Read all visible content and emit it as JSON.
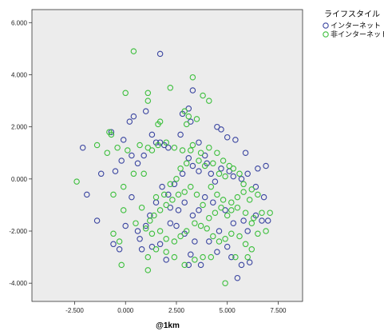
{
  "chart_data": {
    "type": "scatter",
    "title": "",
    "xlabel": "@1km",
    "ylabel": "",
    "xlim": [
      -4600,
      8700
    ],
    "ylim": [
      -4700,
      6500
    ],
    "xticks": [
      "-2.500",
      "0.000",
      "2.500",
      "5.000",
      "7.500"
    ],
    "xtick_values": [
      -2500,
      0,
      2500,
      5000,
      7500
    ],
    "yticks": [
      "6.000",
      "4.000",
      "2.000",
      "0.000",
      "-2.000",
      "-4.000"
    ],
    "ytick_values": [
      6000,
      4000,
      2000,
      0,
      -2000,
      -4000
    ],
    "grid": false,
    "background": "#ececec",
    "legend": {
      "title": "ライフスタイル",
      "placement": "top-right, outside plot"
    },
    "series": [
      {
        "name": "インターネット",
        "color": "#3a45a0",
        "marker": "open-circle",
        "points": [
          [
            1700,
            4800
          ],
          [
            3300,
            3400
          ],
          [
            3100,
            2700
          ],
          [
            2800,
            2500
          ],
          [
            1000,
            2600
          ],
          [
            400,
            2400
          ],
          [
            200,
            2200
          ],
          [
            -2100,
            1200
          ],
          [
            -1200,
            200
          ],
          [
            -1900,
            -600
          ],
          [
            -1400,
            -1600
          ],
          [
            -100,
            1500
          ],
          [
            300,
            900
          ],
          [
            600,
            600
          ],
          [
            900,
            900
          ],
          [
            1500,
            1400
          ],
          [
            1700,
            1400
          ],
          [
            1900,
            1300
          ],
          [
            2100,
            1200
          ],
          [
            3200,
            2200
          ],
          [
            3600,
            1400
          ],
          [
            4500,
            2000
          ],
          [
            4700,
            1900
          ],
          [
            5000,
            1600
          ],
          [
            5400,
            1500
          ],
          [
            3100,
            800
          ],
          [
            3300,
            500
          ],
          [
            3600,
            300
          ],
          [
            4000,
            600
          ],
          [
            4200,
            200
          ],
          [
            4400,
            -100
          ],
          [
            4700,
            400
          ],
          [
            5100,
            300
          ],
          [
            5300,
            100
          ],
          [
            5700,
            0
          ],
          [
            6000,
            200
          ],
          [
            6500,
            400
          ],
          [
            6900,
            500
          ],
          [
            6400,
            -300
          ],
          [
            6800,
            -700
          ],
          [
            2800,
            200
          ],
          [
            2400,
            -200
          ],
          [
            2100,
            -600
          ],
          [
            1800,
            -300
          ],
          [
            1500,
            -900
          ],
          [
            1200,
            -1400
          ],
          [
            1000,
            -1800
          ],
          [
            600,
            -2000
          ],
          [
            0,
            -1800
          ],
          [
            -600,
            -2500
          ],
          [
            800,
            -2700
          ],
          [
            1300,
            -2600
          ],
          [
            1700,
            -2500
          ],
          [
            2200,
            -1700
          ],
          [
            2500,
            -1800
          ],
          [
            2900,
            -2100
          ],
          [
            3400,
            -2400
          ],
          [
            3200,
            -2900
          ],
          [
            3100,
            -3300
          ],
          [
            3700,
            -3300
          ],
          [
            4100,
            -2400
          ],
          [
            4600,
            -2000
          ],
          [
            5000,
            -2600
          ],
          [
            5200,
            -3000
          ],
          [
            5500,
            -3800
          ],
          [
            5700,
            -3300
          ],
          [
            6100,
            -3200
          ],
          [
            6000,
            -2000
          ],
          [
            6400,
            -1400
          ],
          [
            6700,
            -1600
          ],
          [
            7000,
            -1600
          ],
          [
            4300,
            -900
          ],
          [
            3900,
            -700
          ],
          [
            3600,
            -1200
          ],
          [
            3300,
            -1400
          ],
          [
            2900,
            -900
          ],
          [
            2600,
            -1200
          ],
          [
            2200,
            -1100
          ],
          [
            -500,
            300
          ],
          [
            -200,
            700
          ],
          [
            -700,
            1800
          ],
          [
            1300,
            1700
          ],
          [
            2700,
            1700
          ],
          [
            3900,
            900
          ],
          [
            5900,
            1000
          ],
          [
            4900,
            -1200
          ],
          [
            5300,
            -1700
          ],
          [
            5800,
            -1600
          ],
          [
            4500,
            -2800
          ],
          [
            2000,
            -3100
          ],
          [
            300,
            -700
          ],
          [
            700,
            -2300
          ],
          [
            -300,
            -2700
          ]
        ]
      },
      {
        "name": "非インターネット",
        "color": "#3cbf3c",
        "marker": "open-circle",
        "points": [
          [
            400,
            4900
          ],
          [
            3300,
            3900
          ],
          [
            2200,
            3500
          ],
          [
            1100,
            3300
          ],
          [
            1100,
            3000
          ],
          [
            0,
            3300
          ],
          [
            3800,
            3200
          ],
          [
            4100,
            3000
          ],
          [
            2900,
            2600
          ],
          [
            3100,
            2400
          ],
          [
            3500,
            2300
          ],
          [
            3000,
            2100
          ],
          [
            1700,
            2200
          ],
          [
            1600,
            2100
          ],
          [
            -800,
            1800
          ],
          [
            -700,
            1700
          ],
          [
            -900,
            1000
          ],
          [
            -1400,
            1300
          ],
          [
            -400,
            1200
          ],
          [
            100,
            1100
          ],
          [
            700,
            1300
          ],
          [
            1100,
            1200
          ],
          [
            1300,
            1100
          ],
          [
            1600,
            1300
          ],
          [
            2000,
            1400
          ],
          [
            2400,
            1200
          ],
          [
            2800,
            1100
          ],
          [
            3300,
            1300
          ],
          [
            3200,
            1100
          ],
          [
            3700,
            1000
          ],
          [
            4100,
            1200
          ],
          [
            4500,
            1000
          ],
          [
            4800,
            700
          ],
          [
            5100,
            500
          ],
          [
            4300,
            600
          ],
          [
            4600,
            200
          ],
          [
            4900,
            100
          ],
          [
            5300,
            400
          ],
          [
            5600,
            200
          ],
          [
            5800,
            -200
          ],
          [
            6200,
            -400
          ],
          [
            6500,
            -600
          ],
          [
            6700,
            -1300
          ],
          [
            7100,
            -1300
          ],
          [
            6900,
            -2000
          ],
          [
            6500,
            -2100
          ],
          [
            6200,
            -1700
          ],
          [
            5900,
            -1300
          ],
          [
            5500,
            -1100
          ],
          [
            5200,
            -1200
          ],
          [
            5000,
            -1400
          ],
          [
            4700,
            -1100
          ],
          [
            4400,
            -1300
          ],
          [
            4100,
            -1500
          ],
          [
            3800,
            -1000
          ],
          [
            3500,
            -600
          ],
          [
            3200,
            -300
          ],
          [
            2900,
            -500
          ],
          [
            2600,
            -600
          ],
          [
            2300,
            -800
          ],
          [
            2000,
            -1000
          ],
          [
            1700,
            -1200
          ],
          [
            1400,
            -1400
          ],
          [
            1200,
            -1600
          ],
          [
            1000,
            -1900
          ],
          [
            1300,
            -2100
          ],
          [
            1700,
            -2000
          ],
          [
            2000,
            -2300
          ],
          [
            2400,
            -2400
          ],
          [
            2700,
            -2200
          ],
          [
            3000,
            -2000
          ],
          [
            3400,
            -1700
          ],
          [
            3700,
            -1800
          ],
          [
            4000,
            -1900
          ],
          [
            4300,
            -2200
          ],
          [
            4600,
            -2400
          ],
          [
            4900,
            -2300
          ],
          [
            5200,
            -2100
          ],
          [
            5600,
            -2200
          ],
          [
            5900,
            -2500
          ],
          [
            6200,
            -2700
          ],
          [
            6000,
            -3000
          ],
          [
            4900,
            -4000
          ],
          [
            4200,
            -3000
          ],
          [
            3800,
            -3000
          ],
          [
            3400,
            -3100
          ],
          [
            2900,
            -3300
          ],
          [
            2400,
            -3000
          ],
          [
            2000,
            -2800
          ],
          [
            1500,
            -2700
          ],
          [
            1100,
            -3000
          ],
          [
            1100,
            -3500
          ],
          [
            -200,
            -3300
          ],
          [
            -600,
            -2100
          ],
          [
            -300,
            -2400
          ],
          [
            -100,
            -1200
          ],
          [
            500,
            -1700
          ],
          [
            800,
            -1100
          ],
          [
            1500,
            -700
          ],
          [
            1900,
            -600
          ],
          [
            2200,
            -200
          ],
          [
            2500,
            0
          ],
          [
            2700,
            400
          ],
          [
            3000,
            600
          ],
          [
            3600,
            700
          ],
          [
            3900,
            500
          ],
          [
            4200,
            -300
          ],
          [
            4500,
            -600
          ],
          [
            4800,
            -800
          ],
          [
            5200,
            -900
          ],
          [
            5500,
            -700
          ],
          [
            5800,
            -500
          ],
          [
            6100,
            -800
          ],
          [
            6300,
            -1500
          ],
          [
            -2400,
            -100
          ],
          [
            -600,
            -600
          ],
          [
            400,
            200
          ],
          [
            900,
            200
          ],
          [
            -100,
            -300
          ],
          [
            5400,
            -3000
          ]
        ]
      }
    ]
  }
}
